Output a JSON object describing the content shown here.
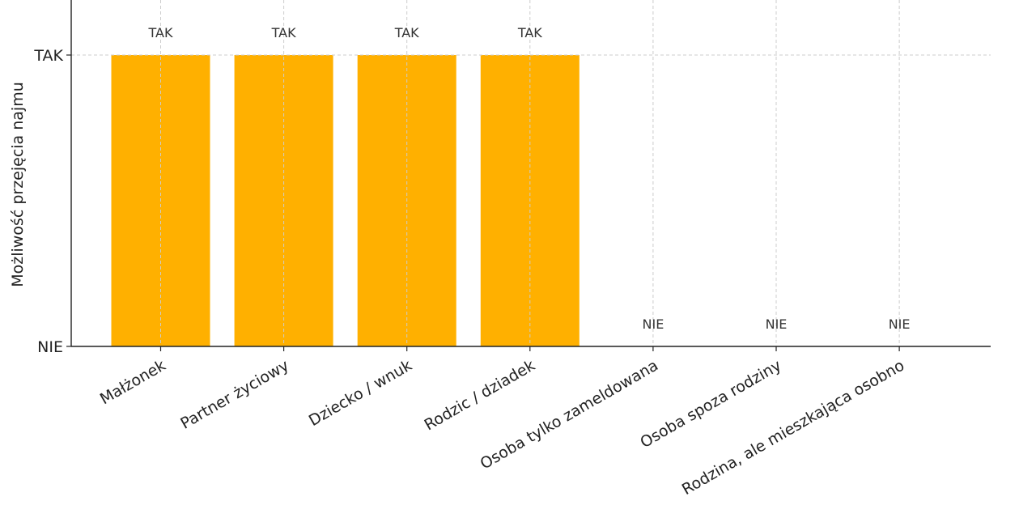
{
  "chart_data": {
    "type": "bar",
    "title": "",
    "xlabel": "",
    "ylabel": "Możliwość przejęcia najmu",
    "categories": [
      "Małżonek",
      "Partner życiowy",
      "Dziecko / wnuk",
      "Rodzic / dziadek",
      "Osoba tylko zameldowana",
      "Osoba spoza rodziny",
      "Rodzina, ale mieszkająca osobno"
    ],
    "values": [
      1,
      1,
      1,
      1,
      0,
      0,
      0
    ],
    "data_labels": [
      "TAK",
      "TAK",
      "TAK",
      "TAK",
      "NIE",
      "NIE",
      "NIE"
    ],
    "yticks": [
      {
        "value": 0,
        "label": "NIE"
      },
      {
        "value": 1,
        "label": "TAK"
      }
    ],
    "ylim": [
      0,
      1.2
    ],
    "grid": true,
    "colors": {
      "bar": "#FFB000"
    }
  }
}
